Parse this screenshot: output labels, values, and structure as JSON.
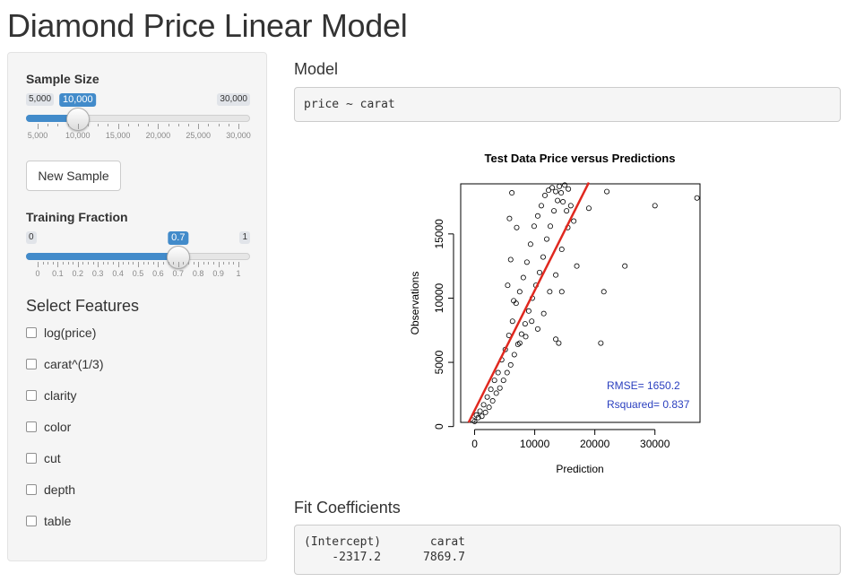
{
  "page": {
    "title": "Diamond Price Linear Model"
  },
  "sidebar": {
    "sample_size": {
      "label": "Sample Size",
      "min": "5,000",
      "max": "30,000",
      "value": "10,000",
      "value_num": 10000,
      "range": [
        5000,
        30000
      ],
      "tick_labels": [
        "5,000",
        "10,000",
        "15,000",
        "20,000",
        "25,000",
        "30,000"
      ]
    },
    "new_sample_button": "New Sample",
    "training_fraction": {
      "label": "Training Fraction",
      "min": "0",
      "max": "1",
      "value": "0.7",
      "value_num": 0.7,
      "range": [
        0,
        1
      ],
      "tick_labels": [
        "0",
        "0.1",
        "0.2",
        "0.3",
        "0.4",
        "0.5",
        "0.6",
        "0.7",
        "0.8",
        "0.9",
        "1"
      ]
    },
    "features": {
      "title": "Select Features",
      "options": [
        "log(price)",
        "carat^(1/3)",
        "clarity",
        "color",
        "cut",
        "depth",
        "table"
      ]
    }
  },
  "main": {
    "model_heading": "Model",
    "model_formula": "price ~ carat",
    "coef_heading": "Fit Coefficients",
    "coef_names_line": "(Intercept)       carat",
    "coef_values_line": "    -2317.2      7869.7"
  },
  "chart_data": {
    "type": "scatter",
    "title": "Test Data Price versus Predictions",
    "xlabel": "Prediction",
    "ylabel": "Observations",
    "xlim": [
      -2317,
      37500
    ],
    "ylim": [
      326,
      18900
    ],
    "xticks": [
      0,
      10000,
      20000,
      30000
    ],
    "yticks": [
      0,
      5000,
      10000,
      15000
    ],
    "annotations": [
      "RMSE= 1650.2",
      "Rsquared= 0.837"
    ],
    "annotation_color": "#2a3fbf",
    "fit_line": {
      "x": [
        -1000,
        19000
      ],
      "y": [
        -1000,
        19000
      ],
      "color": "#e0281f"
    },
    "points": [
      [
        -300,
        500
      ],
      [
        0,
        400
      ],
      [
        300,
        900
      ],
      [
        600,
        700
      ],
      [
        900,
        1200
      ],
      [
        1200,
        800
      ],
      [
        1500,
        1700
      ],
      [
        1800,
        1100
      ],
      [
        2100,
        2300
      ],
      [
        2400,
        1500
      ],
      [
        2700,
        2900
      ],
      [
        3000,
        2000
      ],
      [
        3300,
        3600
      ],
      [
        3600,
        2600
      ],
      [
        3900,
        4200
      ],
      [
        4200,
        3000
      ],
      [
        4500,
        5200
      ],
      [
        4800,
        3600
      ],
      [
        5100,
        6000
      ],
      [
        5400,
        4200
      ],
      [
        5700,
        7100
      ],
      [
        6000,
        4800
      ],
      [
        6300,
        8200
      ],
      [
        6600,
        5600
      ],
      [
        6900,
        9600
      ],
      [
        7200,
        6400
      ],
      [
        7500,
        10500
      ],
      [
        7800,
        7200
      ],
      [
        8100,
        11600
      ],
      [
        8400,
        8000
      ],
      [
        8700,
        12800
      ],
      [
        9000,
        9000
      ],
      [
        9300,
        14200
      ],
      [
        9600,
        10000
      ],
      [
        9900,
        15600
      ],
      [
        10200,
        11000
      ],
      [
        10500,
        16400
      ],
      [
        10800,
        12000
      ],
      [
        11100,
        17200
      ],
      [
        11400,
        13200
      ],
      [
        11700,
        18000
      ],
      [
        12000,
        14600
      ],
      [
        12300,
        18400
      ],
      [
        12600,
        15600
      ],
      [
        12900,
        18600
      ],
      [
        13200,
        16800
      ],
      [
        13500,
        18300
      ],
      [
        13800,
        17600
      ],
      [
        14100,
        18700
      ],
      [
        14400,
        18200
      ],
      [
        14700,
        17500
      ],
      [
        15000,
        18800
      ],
      [
        15300,
        16800
      ],
      [
        15600,
        18500
      ],
      [
        16000,
        17200
      ],
      [
        16500,
        16000
      ],
      [
        7500,
        6500
      ],
      [
        8500,
        7000
      ],
      [
        9500,
        8200
      ],
      [
        6500,
        9800
      ],
      [
        5500,
        11000
      ],
      [
        6000,
        13000
      ],
      [
        7000,
        15500
      ],
      [
        5800,
        16200
      ],
      [
        6200,
        18200
      ],
      [
        10500,
        7600
      ],
      [
        11500,
        8800
      ],
      [
        12500,
        10500
      ],
      [
        13500,
        11800
      ],
      [
        14500,
        13800
      ],
      [
        15500,
        15500
      ],
      [
        13500,
        6800
      ],
      [
        14000,
        6500
      ],
      [
        14500,
        10500
      ],
      [
        17000,
        12500
      ],
      [
        19000,
        17000
      ],
      [
        21000,
        6500
      ],
      [
        21500,
        10500
      ],
      [
        22000,
        18300
      ],
      [
        25000,
        12500
      ],
      [
        30000,
        17200
      ],
      [
        37000,
        17800
      ]
    ]
  }
}
